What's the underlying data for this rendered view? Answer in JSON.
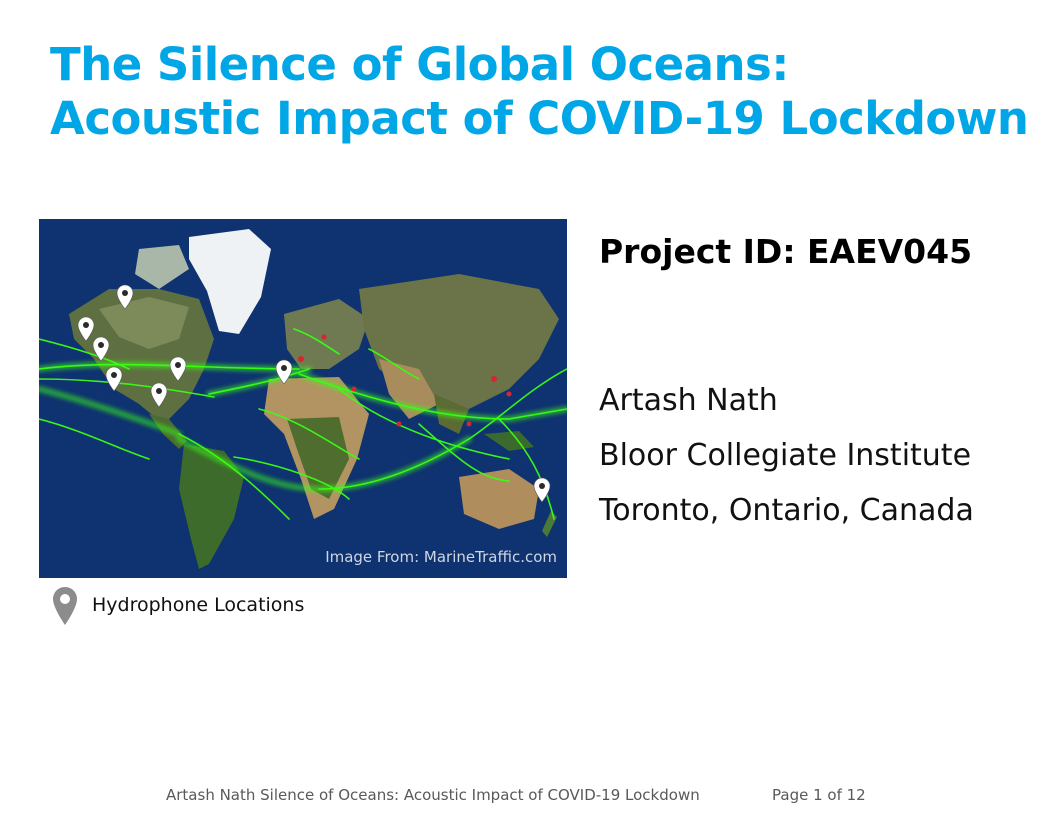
{
  "title": {
    "line1": "The Silence of Global Oceans:",
    "line2": "Acoustic Impact of COVID-19 Lockdown"
  },
  "colors": {
    "title": "#00A6E6",
    "ocean": "#0e2f6a",
    "shipping": "#39ff14",
    "marker": "#ffffff",
    "legend_marker": "#8c8c8c"
  },
  "map": {
    "credit": "Image From: MarineTraffic.com",
    "markers": [
      {
        "name": "marker-alaska"
      },
      {
        "name": "marker-canada-west"
      },
      {
        "name": "marker-us-west"
      },
      {
        "name": "marker-california"
      },
      {
        "name": "marker-us-east"
      },
      {
        "name": "marker-gulf"
      },
      {
        "name": "marker-europe"
      },
      {
        "name": "marker-new-zealand"
      }
    ],
    "icon": "map-pin-icon"
  },
  "legend": {
    "icon": "map-pin-icon",
    "label": "Hydrophone Locations"
  },
  "project_id": "Project ID: EAEV045",
  "author": {
    "name": "Artash Nath",
    "school": "Bloor Collegiate Institute",
    "location": "Toronto, Ontario, Canada"
  },
  "footer": {
    "text": "Artash Nath   Silence of Oceans: Acoustic Impact of COVID-19 Lockdown",
    "page": "Page 1 of 12"
  }
}
